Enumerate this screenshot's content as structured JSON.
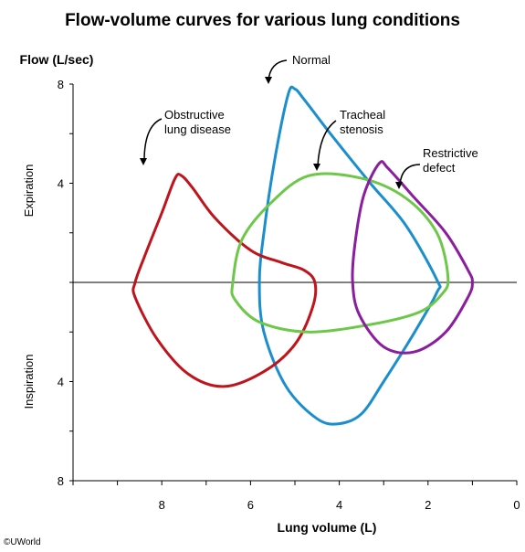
{
  "title": "Flow-volume curves for various lung conditions",
  "credit": "©UWorld",
  "chart_data": {
    "type": "line",
    "title": "Flow-volume curves for various lung conditions",
    "xlabel": "Lung volume (L)",
    "ylabel": "Flow (L/sec)",
    "xlim": [
      10,
      0
    ],
    "ylim": [
      -8,
      8
    ],
    "x_reversed": true,
    "x_ticks": [
      8,
      6,
      4,
      2,
      0
    ],
    "y_ticks": [
      8,
      4,
      0,
      -4,
      -8
    ],
    "y_tick_labels": [
      "8",
      "4",
      "",
      "4",
      "8"
    ],
    "y_region_labels": {
      "upper": "Expiration",
      "lower": "Inspiration"
    },
    "grid": false,
    "legend": "none",
    "series": [
      {
        "name": "Normal",
        "color": "#1b8fcd",
        "label": "Normal",
        "points": [
          [
            5.8,
            0
          ],
          [
            5.7,
            2
          ],
          [
            5.45,
            5
          ],
          [
            5.15,
            7.6
          ],
          [
            5.0,
            7.8
          ],
          [
            4.8,
            7.4
          ],
          [
            4.2,
            6
          ],
          [
            3.3,
            4
          ],
          [
            2.5,
            2.3
          ],
          [
            1.8,
            0.1
          ],
          [
            1.8,
            -0.4
          ],
          [
            2.3,
            -2
          ],
          [
            3.0,
            -4
          ],
          [
            3.5,
            -5.3
          ],
          [
            4.0,
            -5.7
          ],
          [
            4.5,
            -5.5
          ],
          [
            5.2,
            -4.2
          ],
          [
            5.7,
            -2
          ],
          [
            5.8,
            0
          ]
        ]
      },
      {
        "name": "Obstructive lung disease",
        "color": "#c0141c",
        "label": "Obstructive\nlung disease",
        "points": [
          [
            8.6,
            0
          ],
          [
            8.4,
            1
          ],
          [
            8.0,
            2.8
          ],
          [
            7.7,
            4.2
          ],
          [
            7.55,
            4.3
          ],
          [
            7.3,
            3.8
          ],
          [
            6.8,
            2.6
          ],
          [
            6.0,
            1.3
          ],
          [
            5.3,
            0.8
          ],
          [
            4.8,
            0.5
          ],
          [
            4.55,
            0
          ],
          [
            4.6,
            -1
          ],
          [
            5.0,
            -2.5
          ],
          [
            5.7,
            -3.6
          ],
          [
            6.6,
            -4.2
          ],
          [
            7.4,
            -3.7
          ],
          [
            8.1,
            -2.3
          ],
          [
            8.6,
            -0.6
          ],
          [
            8.6,
            0
          ]
        ]
      },
      {
        "name": "Tracheal stenosis",
        "color": "#6dc84a",
        "label": "Tracheal\nstenosis",
        "points": [
          [
            6.4,
            0
          ],
          [
            6.2,
            1.7
          ],
          [
            5.6,
            3.1
          ],
          [
            4.7,
            4.3
          ],
          [
            3.5,
            4.2
          ],
          [
            2.5,
            3.4
          ],
          [
            1.8,
            2
          ],
          [
            1.55,
            0.2
          ],
          [
            1.7,
            -0.5
          ],
          [
            2.2,
            -1.2
          ],
          [
            3.3,
            -1.7
          ],
          [
            4.7,
            -2.0
          ],
          [
            5.8,
            -1.6
          ],
          [
            6.35,
            -0.7
          ],
          [
            6.4,
            0
          ]
        ]
      },
      {
        "name": "Restrictive defect",
        "color": "#8a1e9e",
        "label": "Restrictive\ndefect",
        "points": [
          [
            3.7,
            0
          ],
          [
            3.65,
            1.5
          ],
          [
            3.45,
            3.5
          ],
          [
            3.1,
            4.8
          ],
          [
            2.9,
            4.6
          ],
          [
            2.3,
            3.4
          ],
          [
            1.6,
            2
          ],
          [
            1.1,
            0.5
          ],
          [
            1.0,
            0
          ],
          [
            1.1,
            -0.6
          ],
          [
            1.6,
            -2.0
          ],
          [
            2.3,
            -2.8
          ],
          [
            3.0,
            -2.6
          ],
          [
            3.55,
            -1.3
          ],
          [
            3.7,
            0
          ]
        ]
      }
    ]
  }
}
